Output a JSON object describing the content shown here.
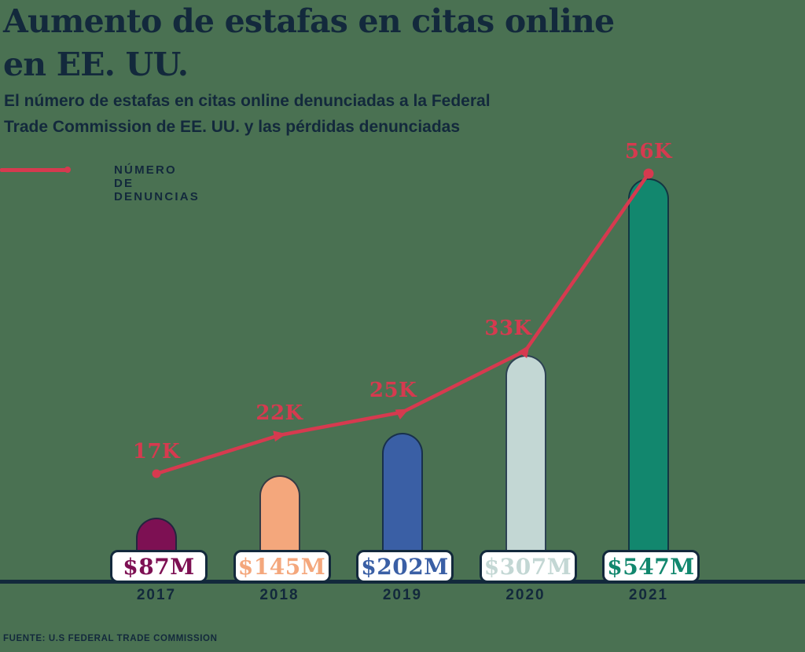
{
  "page": {
    "title": "Aumento de estafas en citas online\nen EE. UU.",
    "subtitle": "El número de estafas en citas online denunciadas a la Federal\nTrade Commission de EE. UU. y las pérdidas denunciadas",
    "source": "FUENTE: U.S FEDERAL TRADE COMMISSION"
  },
  "legend": {
    "label": "NÚMERO DE DENUNCIAS",
    "swatch_color": "#d63a4f"
  },
  "colors": {
    "background": "#4a7152",
    "ink": "#13293c",
    "line": "#d63a4f",
    "box_background": "#ffffff"
  },
  "chart_data": {
    "type": "bar+line",
    "categories": [
      "2017",
      "2018",
      "2019",
      "2020",
      "2021"
    ],
    "series": [
      {
        "name": "Pérdidas denunciadas",
        "type": "bar",
        "unit": "millones de USD",
        "values": [
          87,
          145,
          202,
          307,
          547
        ],
        "labels": [
          "$87M",
          "$145M",
          "$202M",
          "$307M",
          "$547M"
        ],
        "colors": [
          "#7d1053",
          "#f4a77c",
          "#3a5fa5",
          "#c3d7d4",
          "#12876e"
        ]
      },
      {
        "name": "Número de denuncias",
        "type": "line",
        "values": [
          17000,
          22000,
          25000,
          33000,
          56000
        ],
        "labels": [
          "17K",
          "22K",
          "25K",
          "33K",
          "56K"
        ],
        "color": "#d63a4f"
      }
    ],
    "xlabel": "",
    "ylabel": "",
    "grid": false,
    "legend_position": "top-left",
    "baseline_axis": true
  }
}
